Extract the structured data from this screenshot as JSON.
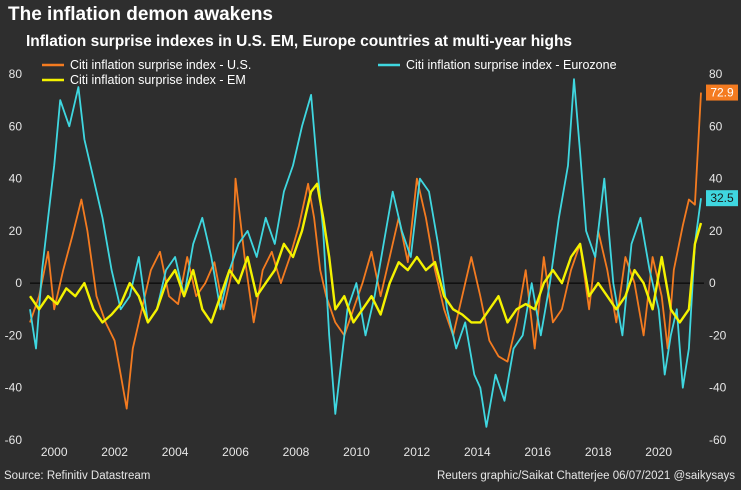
{
  "header": {
    "title": "The inflation demon awakens",
    "subtitle": "Inflation surprise indexes in U.S. EM, Europe countries at multi-year highs"
  },
  "footer": {
    "source": "Source: Refinitiv Datastream",
    "credit": "Reuters graphic/Saikat Chatterjee 06/07/2021 @saikysays"
  },
  "colors": {
    "background": "#2e2e2e",
    "us": "#f47b20",
    "eurozone": "#3fd7e0",
    "em": "#f4f200",
    "zero_line": "#000000"
  },
  "chart_data": {
    "type": "line",
    "xlim": [
      1999.2,
      2021.5
    ],
    "ylim": [
      -60,
      80
    ],
    "x_ticks": [
      2000,
      2002,
      2004,
      2006,
      2008,
      2010,
      2012,
      2014,
      2016,
      2018,
      2020
    ],
    "y_ticks": [
      -60,
      -40,
      -20,
      0,
      20,
      40,
      60,
      80
    ],
    "legend_placement": "top",
    "series": [
      {
        "name": "Citi inflation surprise index - U.S.",
        "color_key": "us",
        "end_label": "72.9",
        "x": [
          1999.2,
          1999.5,
          1999.8,
          2000.0,
          2000.3,
          2000.6,
          2000.9,
          2001.1,
          2001.4,
          2001.7,
          2002.0,
          2002.2,
          2002.4,
          2002.6,
          2002.9,
          2003.2,
          2003.5,
          2003.8,
          2004.1,
          2004.4,
          2004.7,
          2005.0,
          2005.3,
          2005.6,
          2005.9,
          2006.0,
          2006.3,
          2006.6,
          2006.9,
          2007.2,
          2007.5,
          2007.8,
          2008.1,
          2008.4,
          2008.6,
          2008.8,
          2009.0,
          2009.3,
          2009.6,
          2009.9,
          2010.2,
          2010.5,
          2010.8,
          2011.1,
          2011.4,
          2011.7,
          2012.0,
          2012.3,
          2012.6,
          2012.9,
          2013.2,
          2013.5,
          2013.8,
          2014.1,
          2014.4,
          2014.7,
          2015.0,
          2015.3,
          2015.6,
          2015.9,
          2016.2,
          2016.5,
          2016.8,
          2017.1,
          2017.4,
          2017.7,
          2018.0,
          2018.3,
          2018.6,
          2018.9,
          2019.2,
          2019.5,
          2019.8,
          2020.1,
          2020.3,
          2020.5,
          2020.8,
          2021.0,
          2021.2,
          2021.4
        ],
        "y": [
          -15,
          -5,
          12,
          -10,
          5,
          18,
          32,
          20,
          -5,
          -15,
          -22,
          -35,
          -48,
          -25,
          -10,
          5,
          12,
          -5,
          -8,
          10,
          -5,
          0,
          8,
          -10,
          5,
          40,
          10,
          -15,
          5,
          12,
          0,
          10,
          22,
          38,
          25,
          5,
          -5,
          -15,
          -20,
          -10,
          0,
          12,
          -5,
          10,
          25,
          8,
          40,
          25,
          5,
          -10,
          -20,
          -5,
          10,
          -5,
          -22,
          -28,
          -30,
          -15,
          5,
          -25,
          10,
          -15,
          -10,
          5,
          15,
          -10,
          20,
          5,
          -15,
          10,
          0,
          -20,
          10,
          -5,
          -25,
          5,
          22,
          32,
          30,
          72.9
        ]
      },
      {
        "name": "Citi inflation surprise index - Eurozone",
        "color_key": "eurozone",
        "end_label": "32.5",
        "x": [
          1999.2,
          1999.4,
          1999.6,
          1999.8,
          2000.0,
          2000.2,
          2000.5,
          2000.8,
          2001.0,
          2001.3,
          2001.6,
          2001.9,
          2002.2,
          2002.5,
          2002.8,
          2003.1,
          2003.4,
          2003.7,
          2004.0,
          2004.3,
          2004.6,
          2004.9,
          2005.2,
          2005.5,
          2005.8,
          2006.1,
          2006.4,
          2006.7,
          2007.0,
          2007.3,
          2007.6,
          2007.9,
          2008.2,
          2008.5,
          2008.7,
          2008.9,
          2009.1,
          2009.3,
          2009.5,
          2009.7,
          2010.0,
          2010.3,
          2010.6,
          2010.9,
          2011.2,
          2011.5,
          2011.8,
          2012.1,
          2012.4,
          2012.7,
          2013.0,
          2013.3,
          2013.6,
          2013.9,
          2014.1,
          2014.3,
          2014.6,
          2014.9,
          2015.2,
          2015.5,
          2015.8,
          2016.1,
          2016.4,
          2016.7,
          2017.0,
          2017.2,
          2017.4,
          2017.6,
          2017.9,
          2018.2,
          2018.5,
          2018.8,
          2019.1,
          2019.4,
          2019.7,
          2020.0,
          2020.2,
          2020.4,
          2020.6,
          2020.8,
          2021.0,
          2021.2,
          2021.4
        ],
        "y": [
          -10,
          -25,
          5,
          25,
          45,
          70,
          60,
          75,
          55,
          40,
          25,
          5,
          -10,
          -5,
          10,
          -15,
          -10,
          5,
          10,
          -5,
          15,
          25,
          10,
          -10,
          5,
          15,
          20,
          10,
          25,
          15,
          35,
          45,
          60,
          72,
          45,
          20,
          -20,
          -50,
          -30,
          -10,
          0,
          -20,
          -5,
          15,
          35,
          20,
          10,
          40,
          35,
          15,
          -10,
          -25,
          -15,
          -35,
          -40,
          -55,
          -35,
          -45,
          -25,
          -20,
          0,
          -20,
          0,
          25,
          45,
          78,
          50,
          20,
          10,
          40,
          0,
          -20,
          15,
          25,
          5,
          -10,
          -35,
          -20,
          -10,
          -40,
          -25,
          15,
          32.5
        ]
      },
      {
        "name": "Citi inflation surprise index - EM",
        "color_key": "em",
        "end_label": "",
        "x": [
          1999.2,
          1999.5,
          1999.8,
          2000.1,
          2000.4,
          2000.7,
          2001.0,
          2001.3,
          2001.6,
          2001.9,
          2002.2,
          2002.5,
          2002.8,
          2003.1,
          2003.4,
          2003.7,
          2004.0,
          2004.3,
          2004.6,
          2004.9,
          2005.2,
          2005.5,
          2005.8,
          2006.1,
          2006.4,
          2006.7,
          2007.0,
          2007.3,
          2007.6,
          2007.9,
          2008.2,
          2008.5,
          2008.7,
          2008.9,
          2009.1,
          2009.3,
          2009.6,
          2009.9,
          2010.2,
          2010.5,
          2010.8,
          2011.1,
          2011.4,
          2011.7,
          2012.0,
          2012.3,
          2012.6,
          2012.9,
          2013.2,
          2013.5,
          2013.8,
          2014.1,
          2014.4,
          2014.7,
          2015.0,
          2015.3,
          2015.6,
          2015.9,
          2016.2,
          2016.5,
          2016.8,
          2017.1,
          2017.4,
          2017.7,
          2018.0,
          2018.3,
          2018.6,
          2018.9,
          2019.2,
          2019.5,
          2019.8,
          2020.1,
          2020.4,
          2020.7,
          2021.0,
          2021.2,
          2021.4
        ],
        "y": [
          -5,
          -10,
          -5,
          -8,
          -2,
          -5,
          0,
          -10,
          -15,
          -12,
          -8,
          0,
          -5,
          -15,
          -10,
          0,
          5,
          -5,
          5,
          -10,
          -15,
          -5,
          5,
          0,
          10,
          -5,
          0,
          5,
          15,
          10,
          20,
          35,
          38,
          25,
          10,
          -10,
          -5,
          -15,
          -10,
          -5,
          -12,
          0,
          8,
          5,
          10,
          5,
          8,
          -5,
          -10,
          -12,
          -15,
          -15,
          -10,
          -5,
          -15,
          -10,
          -8,
          -10,
          0,
          5,
          0,
          10,
          15,
          -5,
          0,
          -5,
          -10,
          -5,
          5,
          0,
          -10,
          10,
          -10,
          -15,
          -10,
          15,
          23
        ]
      }
    ]
  }
}
